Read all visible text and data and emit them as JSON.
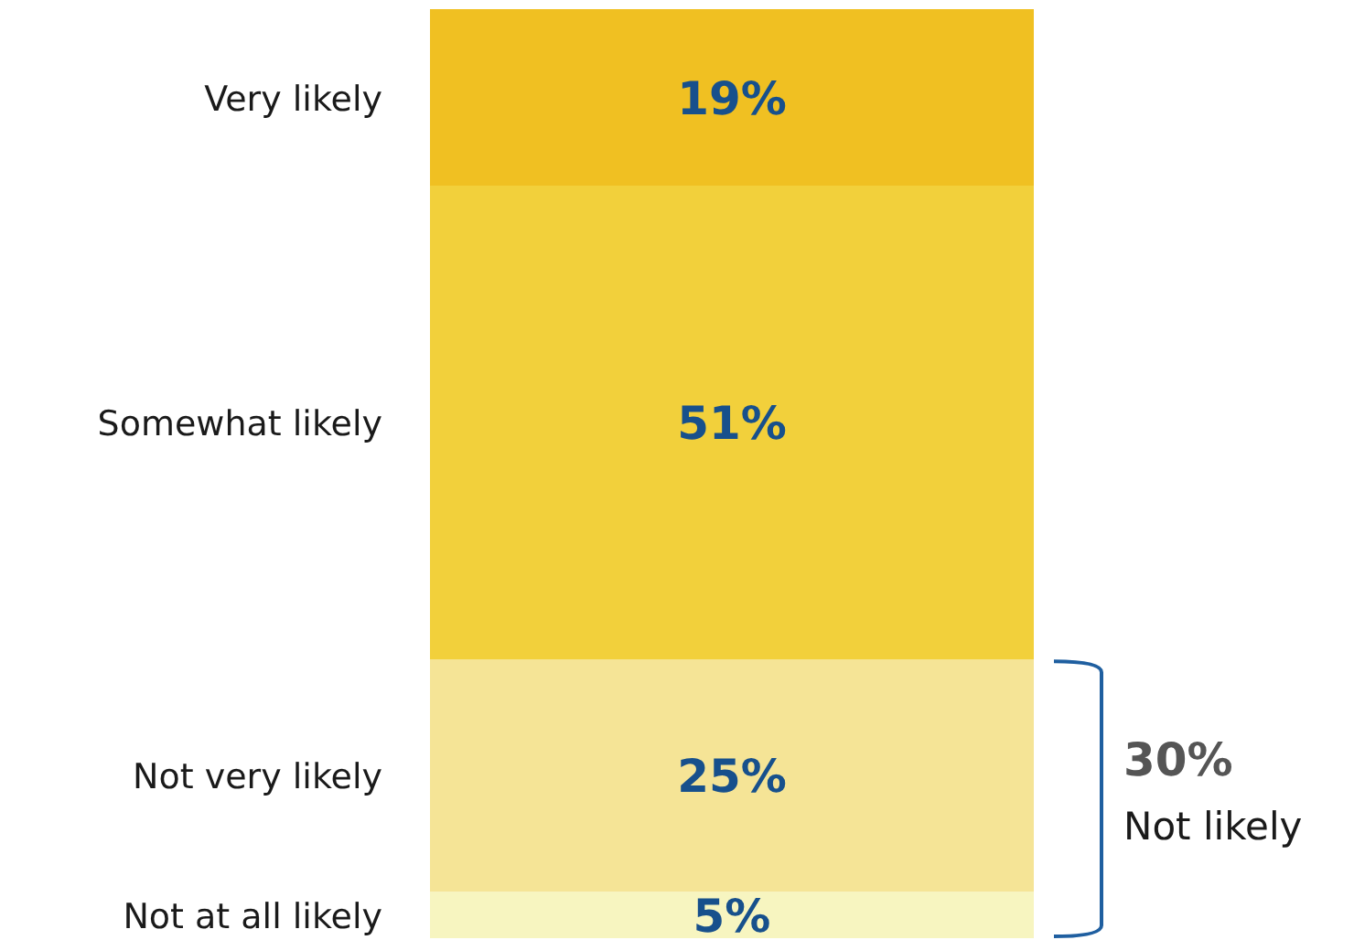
{
  "chart_data": {
    "type": "bar",
    "stacked": true,
    "categories": [
      null
    ],
    "ylim": [
      0,
      100
    ],
    "tick_labels": false,
    "series": [
      {
        "name": "Not at all likely",
        "color": "#f7f5c0",
        "values": [
          5
        ],
        "value_labels": [
          "5%"
        ]
      },
      {
        "name": "Not very likely",
        "color": "#f5e496",
        "values": [
          25
        ],
        "value_labels": [
          "25%"
        ]
      },
      {
        "name": "Somewhat likely",
        "color": "#f2d03b",
        "values": [
          51
        ],
        "value_labels": [
          "51%"
        ]
      },
      {
        "name": "Very likely",
        "color": "#f0c022",
        "values": [
          19
        ],
        "value_labels": [
          "19%"
        ]
      }
    ],
    "annotations": [
      "30%",
      "Not likely"
    ]
  }
}
